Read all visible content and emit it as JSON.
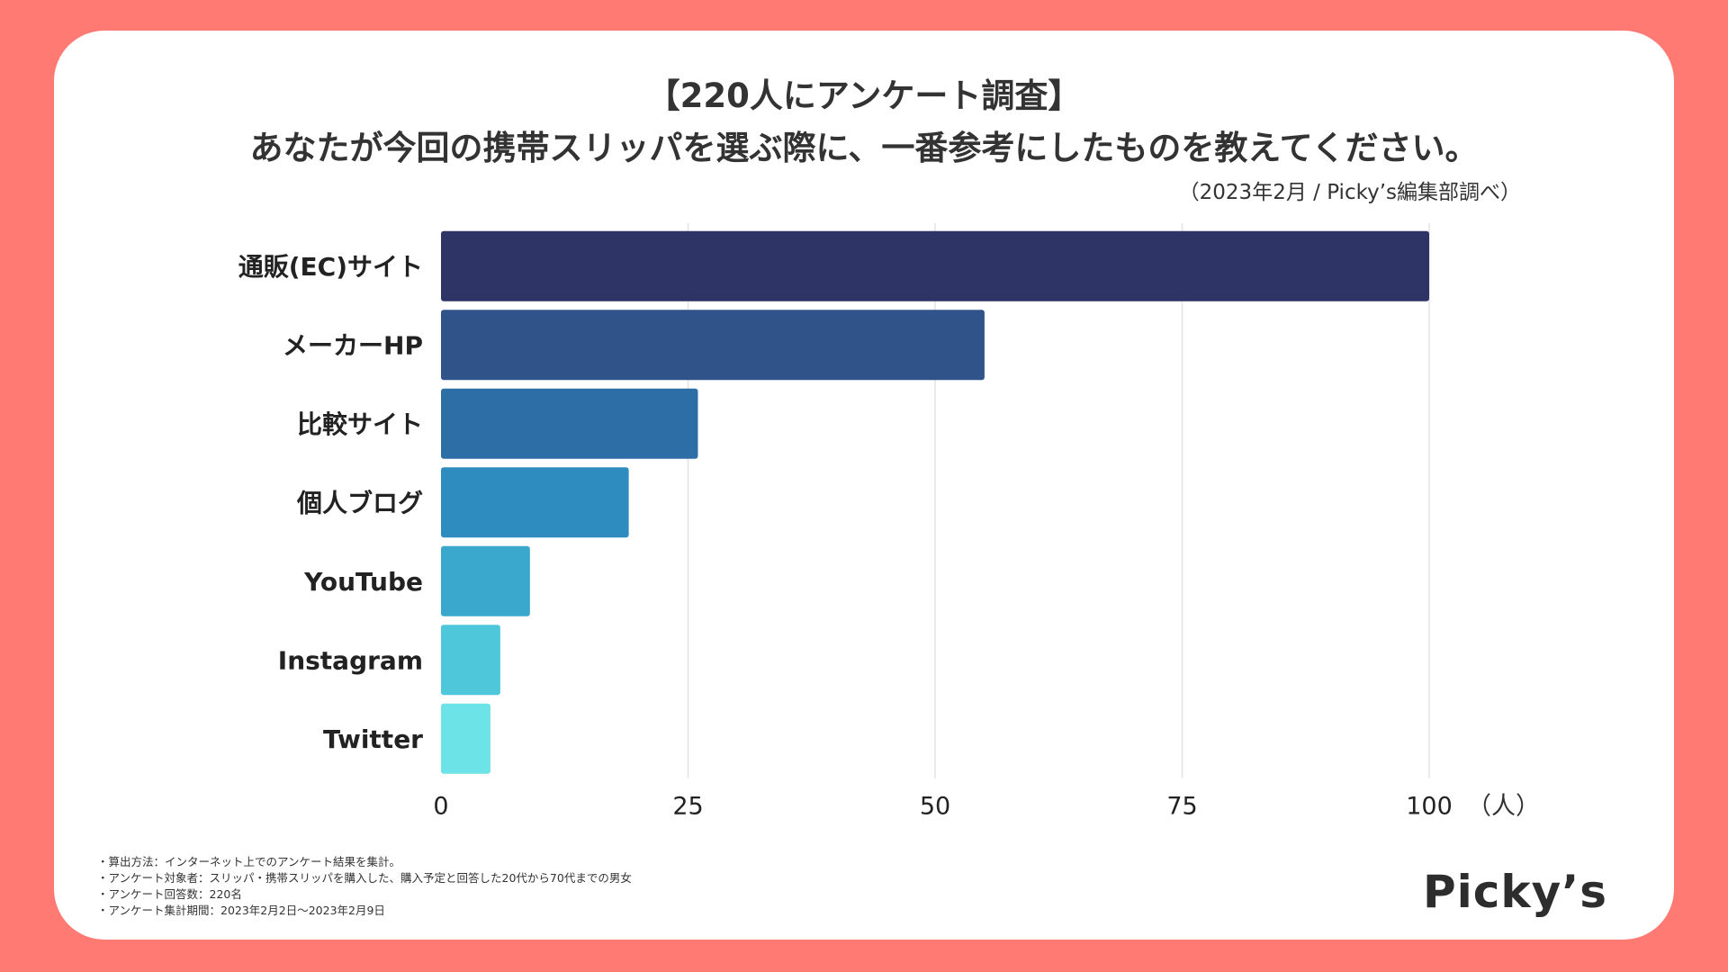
{
  "title_line1": "【220人にアンケート調査】",
  "title_line2": "あなたが今回の携帯スリッパを選ぶ際に、一番参考にしたものを教えてください。",
  "source": "（2023年2月 / Picky’s編集部調べ）",
  "chart_data": {
    "type": "bar",
    "orientation": "horizontal",
    "categories": [
      "通販(EC)サイト",
      "メーカーHP",
      "比較サイト",
      "個人ブログ",
      "YouTube",
      "Instagram",
      "Twitter"
    ],
    "values": [
      100,
      55,
      26,
      19,
      9,
      6,
      5
    ],
    "colors": [
      "#2f3467",
      "#30538a",
      "#2d6ea6",
      "#2e8cbf",
      "#39a8cc",
      "#4ec7db",
      "#6ce3e6"
    ],
    "xlim": [
      0,
      100
    ],
    "xticks": [
      0,
      25,
      50,
      75,
      100
    ],
    "xticklabels": [
      "0",
      "25",
      "50",
      "75",
      "100"
    ],
    "unit_label": "（人）",
    "grid": true
  },
  "notes": [
    "・算出方法：インターネット上でのアンケート結果を集計。",
    "・アンケート対象者：スリッパ・携帯スリッパを購入した、購入予定と回答した20代から70代までの男女",
    "・アンケート回答数：220名",
    "・アンケート集計期間：2023年2月2日〜2023年2月9日"
  ],
  "logo": "Picky’s"
}
